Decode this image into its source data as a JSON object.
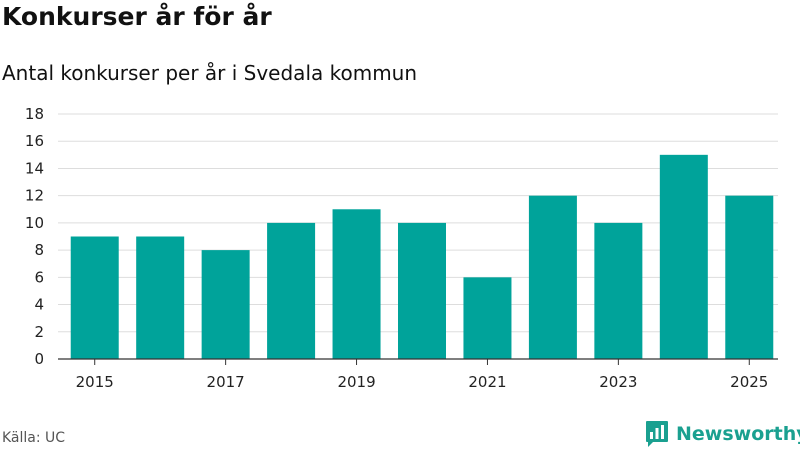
{
  "title": "Konkurser år för år",
  "subtitle": "Antal konkurser per år i Svedala kommun",
  "source": "Källa: UC",
  "brand": "Newsworthy",
  "colors": {
    "bar": "#00a39a",
    "grid": "#dddddd",
    "axis": "#333333",
    "brand": "#1aa090"
  },
  "chart_data": {
    "type": "bar",
    "title": "Konkurser år för år",
    "subtitle": "Antal konkurser per år i Svedala kommun",
    "xlabel": "",
    "ylabel": "",
    "categories": [
      "2015",
      "2016",
      "2017",
      "2018",
      "2019",
      "2020",
      "2021",
      "2022",
      "2023",
      "2024",
      "2025"
    ],
    "values": [
      9,
      9,
      8,
      10,
      11,
      10,
      6,
      12,
      10,
      15,
      12
    ],
    "ylim": [
      0,
      18
    ],
    "yticks": [
      0,
      2,
      4,
      6,
      8,
      10,
      12,
      14,
      16,
      18
    ],
    "xtick_labels": [
      "2015",
      "2017",
      "2019",
      "2021",
      "2023",
      "2025"
    ],
    "grid": true
  }
}
